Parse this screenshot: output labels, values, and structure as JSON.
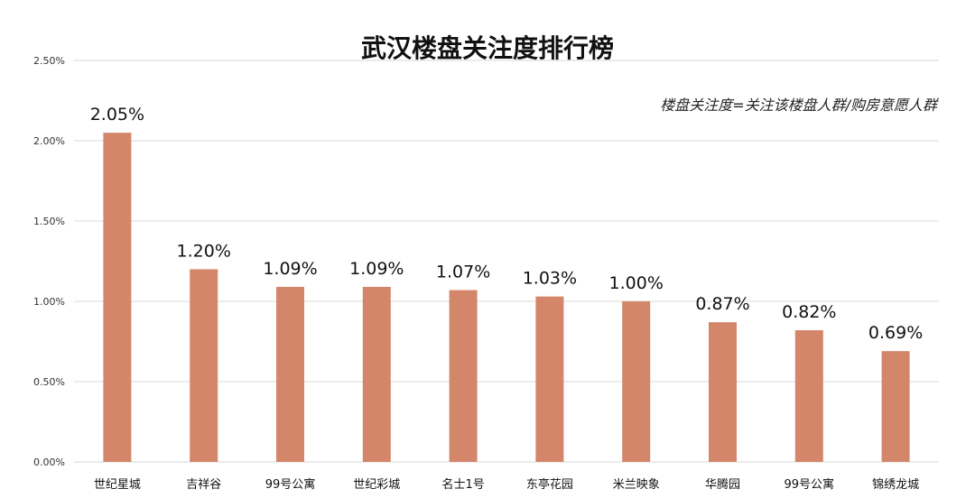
{
  "chart_data": {
    "type": "bar",
    "title": "武汉楼盘关注度排行榜",
    "annotation": "楼盘关注度=关注该楼盘人群/购房意愿人群",
    "categories": [
      "世纪星城",
      "吉祥谷",
      "99号公寓",
      "世纪彩城",
      "名士1号",
      "东亭花园",
      "米兰映象",
      "华腾园",
      "99号公寓",
      "锦绣龙城"
    ],
    "values": [
      2.05,
      1.2,
      1.09,
      1.09,
      1.07,
      1.03,
      1.0,
      0.87,
      0.82,
      0.69
    ],
    "data_labels": [
      "2.05%",
      "1.20%",
      "1.09%",
      "1.09%",
      "1.07%",
      "1.03%",
      "1.00%",
      "0.87%",
      "0.82%",
      "0.69%"
    ],
    "y_ticks": [
      0,
      0.5,
      1.0,
      1.5,
      2.0,
      2.5
    ],
    "y_tick_labels": [
      "0.00%",
      "0.50%",
      "1.00%",
      "1.50%",
      "2.00%",
      "2.50%"
    ],
    "ylim": [
      0,
      2.5
    ],
    "xlabel": "",
    "ylabel": "",
    "grid": true,
    "bar_color": "#d4866b",
    "grid_color": "#d9d9d9"
  }
}
